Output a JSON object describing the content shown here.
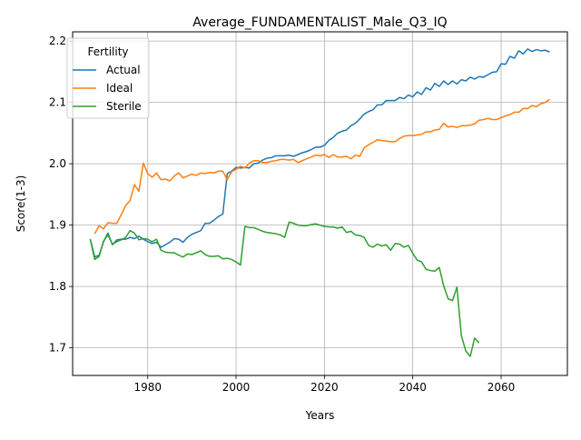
{
  "chart_data": {
    "type": "line",
    "title": "Average_FUNDAMENTALIST_Male_Q3_IQ",
    "xlabel": "Years",
    "ylabel": "Score(1-3)",
    "xlim": [
      1963,
      2075
    ],
    "ylim": [
      1.655,
      2.215
    ],
    "xticks": [
      1980,
      2000,
      2020,
      2040,
      2060
    ],
    "yticks": [
      1.7,
      1.8,
      1.9,
      2.0,
      2.1,
      2.2
    ],
    "grid": true,
    "legend": {
      "title": "Fertility",
      "placement": "upper-left"
    },
    "series": [
      {
        "name": "Actual",
        "color": "#1f77b4",
        "points": [
          [
            1967,
            1.877
          ],
          [
            1968,
            1.848
          ],
          [
            1969,
            1.851
          ],
          [
            1970,
            1.873
          ],
          [
            1971,
            1.887
          ],
          [
            1972,
            1.868
          ],
          [
            1973,
            1.876
          ],
          [
            1974,
            1.877
          ],
          [
            1975,
            1.877
          ],
          [
            1976,
            1.88
          ],
          [
            1977,
            1.878
          ],
          [
            1978,
            1.882
          ],
          [
            1979,
            1.877
          ],
          [
            1980,
            1.873
          ],
          [
            1981,
            1.87
          ],
          [
            1982,
            1.872
          ],
          [
            1983,
            1.864
          ],
          [
            1984,
            1.868
          ],
          [
            1985,
            1.872
          ],
          [
            1986,
            1.878
          ],
          [
            1987,
            1.877
          ],
          [
            1988,
            1.872
          ],
          [
            1989,
            1.88
          ],
          [
            1990,
            1.885
          ],
          [
            1991,
            1.888
          ],
          [
            1992,
            1.891
          ],
          [
            1993,
            1.903
          ],
          [
            1994,
            1.903
          ],
          [
            1995,
            1.908
          ],
          [
            1996,
            1.914
          ],
          [
            1997,
            1.918
          ],
          [
            1998,
            1.984
          ],
          [
            1999,
            1.988
          ],
          [
            2000,
            1.994
          ],
          [
            2001,
            1.993
          ],
          [
            2002,
            1.994
          ],
          [
            2003,
            1.993
          ],
          [
            2004,
            2.0
          ],
          [
            2005,
            2.001
          ],
          [
            2006,
            2.006
          ],
          [
            2007,
            2.009
          ],
          [
            2008,
            2.01
          ],
          [
            2009,
            2.013
          ],
          [
            2010,
            2.013
          ],
          [
            2011,
            2.013
          ],
          [
            2012,
            2.014
          ],
          [
            2013,
            2.012
          ],
          [
            2014,
            2.015
          ],
          [
            2015,
            2.018
          ],
          [
            2016,
            2.02
          ],
          [
            2017,
            2.023
          ],
          [
            2018,
            2.027
          ],
          [
            2019,
            2.027
          ],
          [
            2020,
            2.03
          ],
          [
            2021,
            2.038
          ],
          [
            2022,
            2.043
          ],
          [
            2023,
            2.05
          ],
          [
            2024,
            2.053
          ],
          [
            2025,
            2.055
          ],
          [
            2026,
            2.062
          ],
          [
            2027,
            2.066
          ],
          [
            2028,
            2.073
          ],
          [
            2029,
            2.081
          ],
          [
            2030,
            2.085
          ],
          [
            2031,
            2.088
          ],
          [
            2032,
            2.096
          ],
          [
            2033,
            2.096
          ],
          [
            2034,
            2.103
          ],
          [
            2035,
            2.103
          ],
          [
            2036,
            2.103
          ],
          [
            2037,
            2.108
          ],
          [
            2038,
            2.106
          ],
          [
            2039,
            2.112
          ],
          [
            2040,
            2.109
          ],
          [
            2041,
            2.117
          ],
          [
            2042,
            2.113
          ],
          [
            2043,
            2.124
          ],
          [
            2044,
            2.12
          ],
          [
            2045,
            2.131
          ],
          [
            2046,
            2.126
          ],
          [
            2047,
            2.135
          ],
          [
            2048,
            2.129
          ],
          [
            2049,
            2.135
          ],
          [
            2050,
            2.13
          ],
          [
            2051,
            2.137
          ],
          [
            2052,
            2.135
          ],
          [
            2053,
            2.141
          ],
          [
            2054,
            2.138
          ],
          [
            2055,
            2.142
          ],
          [
            2056,
            2.141
          ],
          [
            2057,
            2.145
          ],
          [
            2058,
            2.149
          ],
          [
            2059,
            2.15
          ],
          [
            2060,
            2.163
          ],
          [
            2061,
            2.162
          ],
          [
            2062,
            2.175
          ],
          [
            2063,
            2.172
          ],
          [
            2064,
            2.184
          ],
          [
            2065,
            2.179
          ],
          [
            2066,
            2.187
          ],
          [
            2067,
            2.183
          ],
          [
            2068,
            2.186
          ],
          [
            2069,
            2.184
          ],
          [
            2070,
            2.185
          ],
          [
            2071,
            2.182
          ]
        ]
      },
      {
        "name": "Ideal",
        "color": "#ff7f0e",
        "points": [
          [
            1968,
            1.886
          ],
          [
            1969,
            1.899
          ],
          [
            1970,
            1.894
          ],
          [
            1971,
            1.904
          ],
          [
            1972,
            1.903
          ],
          [
            1973,
            1.903
          ],
          [
            1974,
            1.917
          ],
          [
            1975,
            1.932
          ],
          [
            1976,
            1.94
          ],
          [
            1977,
            1.966
          ],
          [
            1978,
            1.955
          ],
          [
            1979,
            2.001
          ],
          [
            1980,
            1.984
          ],
          [
            1981,
            1.978
          ],
          [
            1982,
            1.985
          ],
          [
            1983,
            1.974
          ],
          [
            1984,
            1.975
          ],
          [
            1985,
            1.972
          ],
          [
            1986,
            1.98
          ],
          [
            1987,
            1.985
          ],
          [
            1988,
            1.977
          ],
          [
            1989,
            1.98
          ],
          [
            1990,
            1.983
          ],
          [
            1991,
            1.981
          ],
          [
            1992,
            1.985
          ],
          [
            1993,
            1.984
          ],
          [
            1994,
            1.986
          ],
          [
            1995,
            1.985
          ],
          [
            1996,
            1.988
          ],
          [
            1997,
            1.988
          ],
          [
            1998,
            1.974
          ],
          [
            1999,
            1.987
          ],
          [
            2000,
            1.991
          ],
          [
            2001,
            1.996
          ],
          [
            2002,
            1.993
          ],
          [
            2003,
            2.001
          ],
          [
            2004,
            2.005
          ],
          [
            2005,
            2.005
          ],
          [
            2006,
            2.002
          ],
          [
            2007,
            2.002
          ],
          [
            2008,
            2.004
          ],
          [
            2009,
            2.005
          ],
          [
            2010,
            2.007
          ],
          [
            2011,
            2.007
          ],
          [
            2012,
            2.006
          ],
          [
            2013,
            2.007
          ],
          [
            2014,
            2.002
          ],
          [
            2015,
            2.005
          ],
          [
            2016,
            2.008
          ],
          [
            2017,
            2.011
          ],
          [
            2018,
            2.014
          ],
          [
            2019,
            2.013
          ],
          [
            2020,
            2.015
          ],
          [
            2021,
            2.01
          ],
          [
            2022,
            2.015
          ],
          [
            2023,
            2.011
          ],
          [
            2024,
            2.011
          ],
          [
            2025,
            2.012
          ],
          [
            2026,
            2.008
          ],
          [
            2027,
            2.014
          ],
          [
            2028,
            2.012
          ],
          [
            2029,
            2.026
          ],
          [
            2030,
            2.031
          ],
          [
            2031,
            2.035
          ],
          [
            2032,
            2.039
          ],
          [
            2033,
            2.038
          ],
          [
            2034,
            2.037
          ],
          [
            2035,
            2.036
          ],
          [
            2036,
            2.036
          ],
          [
            2037,
            2.041
          ],
          [
            2038,
            2.045
          ],
          [
            2039,
            2.046
          ],
          [
            2040,
            2.046
          ],
          [
            2041,
            2.047
          ],
          [
            2042,
            2.048
          ],
          [
            2043,
            2.052
          ],
          [
            2044,
            2.052
          ],
          [
            2045,
            2.055
          ],
          [
            2046,
            2.056
          ],
          [
            2047,
            2.066
          ],
          [
            2048,
            2.06
          ],
          [
            2049,
            2.061
          ],
          [
            2050,
            2.059
          ],
          [
            2051,
            2.062
          ],
          [
            2052,
            2.062
          ],
          [
            2053,
            2.063
          ],
          [
            2054,
            2.065
          ],
          [
            2055,
            2.071
          ],
          [
            2056,
            2.072
          ],
          [
            2057,
            2.074
          ],
          [
            2058,
            2.072
          ],
          [
            2059,
            2.072
          ],
          [
            2060,
            2.075
          ],
          [
            2061,
            2.078
          ],
          [
            2062,
            2.08
          ],
          [
            2063,
            2.084
          ],
          [
            2064,
            2.084
          ],
          [
            2065,
            2.09
          ],
          [
            2066,
            2.09
          ],
          [
            2067,
            2.095
          ],
          [
            2068,
            2.093
          ],
          [
            2069,
            2.098
          ],
          [
            2070,
            2.1
          ],
          [
            2071,
            2.105
          ]
        ]
      },
      {
        "name": "Sterile",
        "color": "#2ca02c",
        "points": [
          [
            1967,
            1.877
          ],
          [
            1968,
            1.844
          ],
          [
            1969,
            1.849
          ],
          [
            1970,
            1.874
          ],
          [
            1971,
            1.884
          ],
          [
            1972,
            1.869
          ],
          [
            1973,
            1.873
          ],
          [
            1974,
            1.876
          ],
          [
            1975,
            1.88
          ],
          [
            1976,
            1.891
          ],
          [
            1977,
            1.887
          ],
          [
            1978,
            1.876
          ],
          [
            1979,
            1.878
          ],
          [
            1980,
            1.877
          ],
          [
            1981,
            1.873
          ],
          [
            1982,
            1.877
          ],
          [
            1983,
            1.859
          ],
          [
            1984,
            1.856
          ],
          [
            1985,
            1.855
          ],
          [
            1986,
            1.855
          ],
          [
            1987,
            1.851
          ],
          [
            1988,
            1.848
          ],
          [
            1989,
            1.853
          ],
          [
            1990,
            1.852
          ],
          [
            1991,
            1.855
          ],
          [
            1992,
            1.858
          ],
          [
            1993,
            1.852
          ],
          [
            1994,
            1.849
          ],
          [
            1995,
            1.849
          ],
          [
            1996,
            1.85
          ],
          [
            1997,
            1.845
          ],
          [
            1998,
            1.846
          ],
          [
            1999,
            1.844
          ],
          [
            2000,
            1.84
          ],
          [
            2001,
            1.835
          ],
          [
            2002,
            1.898
          ],
          [
            2003,
            1.896
          ],
          [
            2004,
            1.896
          ],
          [
            2005,
            1.893
          ],
          [
            2006,
            1.89
          ],
          [
            2007,
            1.888
          ],
          [
            2008,
            1.887
          ],
          [
            2009,
            1.886
          ],
          [
            2010,
            1.884
          ],
          [
            2011,
            1.88
          ],
          [
            2012,
            1.905
          ],
          [
            2013,
            1.903
          ],
          [
            2014,
            1.9
          ],
          [
            2015,
            1.899
          ],
          [
            2016,
            1.899
          ],
          [
            2017,
            1.901
          ],
          [
            2018,
            1.902
          ],
          [
            2019,
            1.9
          ],
          [
            2020,
            1.898
          ],
          [
            2021,
            1.897
          ],
          [
            2022,
            1.897
          ],
          [
            2023,
            1.895
          ],
          [
            2024,
            1.897
          ],
          [
            2025,
            1.888
          ],
          [
            2026,
            1.89
          ],
          [
            2027,
            1.884
          ],
          [
            2028,
            1.883
          ],
          [
            2029,
            1.88
          ],
          [
            2030,
            1.867
          ],
          [
            2031,
            1.864
          ],
          [
            2032,
            1.869
          ],
          [
            2033,
            1.866
          ],
          [
            2034,
            1.868
          ],
          [
            2035,
            1.859
          ],
          [
            2036,
            1.87
          ],
          [
            2037,
            1.869
          ],
          [
            2038,
            1.864
          ],
          [
            2039,
            1.867
          ],
          [
            2040,
            1.854
          ],
          [
            2041,
            1.843
          ],
          [
            2042,
            1.84
          ],
          [
            2043,
            1.828
          ],
          [
            2044,
            1.826
          ],
          [
            2045,
            1.825
          ],
          [
            2046,
            1.831
          ],
          [
            2047,
            1.801
          ],
          [
            2048,
            1.78
          ],
          [
            2049,
            1.777
          ],
          [
            2050,
            1.799
          ],
          [
            2051,
            1.72
          ],
          [
            2052,
            1.695
          ],
          [
            2053,
            1.686
          ],
          [
            2054,
            1.716
          ],
          [
            2055,
            1.708
          ]
        ]
      }
    ]
  }
}
